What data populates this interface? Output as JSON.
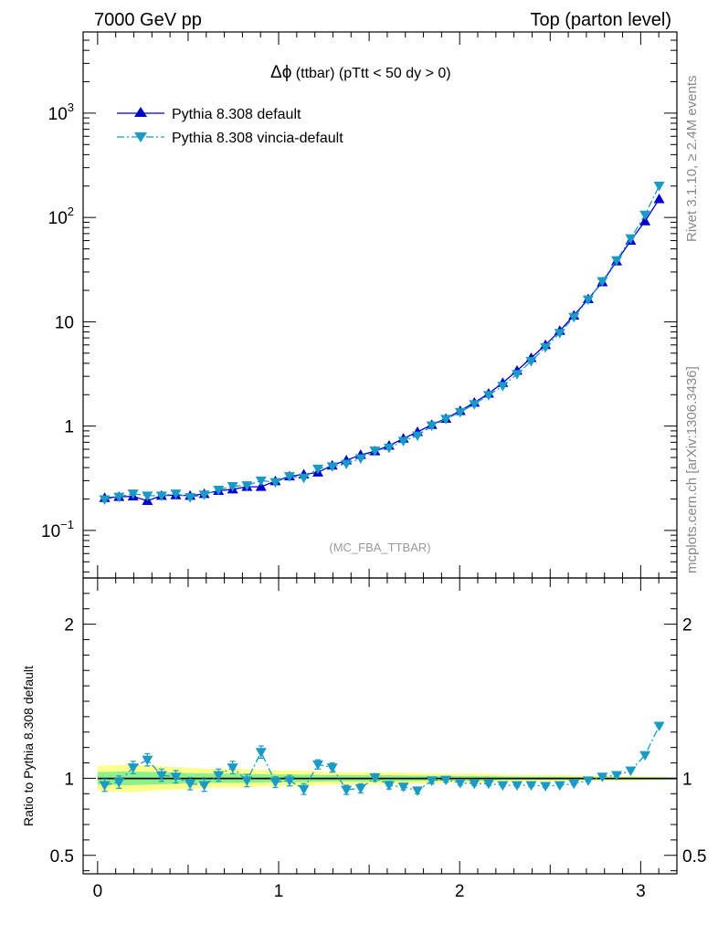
{
  "header": {
    "left": "7000 GeV pp",
    "right": "Top (parton level)"
  },
  "side_labels": {
    "rivet": "Rivet 3.1.10, ≥ 2.4M events",
    "mcplots": "mcplots.cern.ch [arXiv:1306.3436]"
  },
  "chart_data": [
    {
      "type": "line",
      "title": "Δϕ (ttbar) (pTtt < 50 dy > 0)",
      "title_symbol": "Δϕ",
      "title_rest": " (ttbar) (pTtt < 50 dy > 0)",
      "watermark": "(MC_FBA_TTBAR)",
      "yscale": "log",
      "ylim": [
        0.035,
        6000
      ],
      "xlim": [
        -0.08,
        3.2
      ],
      "y_ticks": [
        {
          "value": 0.1,
          "base": "10",
          "exp": "−1"
        },
        {
          "value": 1,
          "label": "1"
        },
        {
          "value": 10,
          "label": "10"
        },
        {
          "value": 100,
          "base": "10",
          "exp": "2"
        },
        {
          "value": 1000,
          "base": "10",
          "exp": "3"
        }
      ],
      "legend_placement": "top-left",
      "x": [
        0.039,
        0.118,
        0.196,
        0.275,
        0.353,
        0.432,
        0.511,
        0.589,
        0.668,
        0.746,
        0.825,
        0.903,
        0.982,
        1.06,
        1.139,
        1.217,
        1.296,
        1.374,
        1.453,
        1.532,
        1.61,
        1.689,
        1.767,
        1.846,
        1.924,
        2.003,
        2.081,
        2.16,
        2.238,
        2.317,
        2.395,
        2.474,
        2.553,
        2.631,
        2.71,
        2.788,
        2.867,
        2.945,
        3.024,
        3.102
      ],
      "series": [
        {
          "name": "Pythia 8.308 default",
          "color": "#0000cc",
          "marker": "triangle-up",
          "line": "solid",
          "values": [
            0.205,
            0.21,
            0.212,
            0.192,
            0.215,
            0.218,
            0.215,
            0.224,
            0.24,
            0.248,
            0.262,
            0.262,
            0.297,
            0.33,
            0.345,
            0.36,
            0.42,
            0.47,
            0.53,
            0.575,
            0.65,
            0.76,
            0.88,
            1.03,
            1.18,
            1.4,
            1.68,
            2.05,
            2.6,
            3.4,
            4.5,
            6.0,
            8.2,
            11.5,
            16.5,
            24.0,
            38.0,
            60.0,
            92.0,
            150.0
          ]
        },
        {
          "name": "Pythia 8.308 vincia-default",
          "color": "#1a9ac4",
          "marker": "triangle-down",
          "line": "dash-dot",
          "values": [
            0.198,
            0.21,
            0.225,
            0.215,
            0.215,
            0.225,
            0.208,
            0.22,
            0.245,
            0.265,
            0.27,
            0.3,
            0.29,
            0.33,
            0.32,
            0.39,
            0.41,
            0.435,
            0.49,
            0.58,
            0.62,
            0.72,
            0.81,
            1.01,
            1.17,
            1.36,
            1.62,
            1.98,
            2.42,
            3.15,
            4.2,
            5.7,
            7.8,
            11.1,
            16.3,
            24.5,
            38.8,
            63.0,
            106.0,
            201.0
          ]
        }
      ]
    },
    {
      "type": "line",
      "ylabel": "Ratio to Pythia 8.308 default",
      "ylim": [
        0.38,
        2.3
      ],
      "xlim": [
        -0.08,
        3.2
      ],
      "x_ticks": [
        0,
        1,
        2,
        3
      ],
      "y_ticks_right": [
        "0.5",
        "1",
        "2"
      ],
      "y_tick_values": [
        0.5,
        1,
        2
      ],
      "bands": [
        {
          "name": "uncertainty-outer",
          "color": "#ffff8c",
          "lo": [
            0.92,
            0.91,
            0.92,
            0.93,
            0.94,
            0.94,
            0.95,
            0.95,
            0.96,
            0.96,
            0.96,
            0.965,
            0.97,
            0.97,
            0.975,
            0.98,
            0.98,
            0.985,
            0.985,
            0.99
          ],
          "hi": [
            1.08,
            1.09,
            1.08,
            1.07,
            1.06,
            1.06,
            1.05,
            1.05,
            1.04,
            1.04,
            1.04,
            1.035,
            1.03,
            1.03,
            1.025,
            1.02,
            1.02,
            1.015,
            1.015,
            1.01
          ],
          "x": [
            0,
            0.16,
            0.32,
            0.48,
            0.64,
            0.8,
            0.96,
            1.12,
            1.28,
            1.44,
            1.6,
            1.76,
            1.92,
            2.08,
            2.24,
            2.4,
            2.56,
            2.72,
            2.88,
            3.14
          ]
        },
        {
          "name": "uncertainty-inner",
          "color": "#8cf08c",
          "lo": [
            0.96,
            0.955,
            0.96,
            0.965,
            0.97,
            0.97,
            0.975,
            0.975,
            0.98,
            0.98,
            0.98,
            0.983,
            0.985,
            0.985,
            0.988,
            0.99,
            0.99,
            0.993,
            0.993,
            0.995
          ],
          "hi": [
            1.04,
            1.045,
            1.04,
            1.035,
            1.03,
            1.03,
            1.025,
            1.025,
            1.02,
            1.02,
            1.02,
            1.017,
            1.015,
            1.015,
            1.012,
            1.01,
            1.01,
            1.007,
            1.007,
            1.005
          ],
          "x": [
            0,
            0.16,
            0.32,
            0.48,
            0.64,
            0.8,
            0.96,
            1.12,
            1.28,
            1.44,
            1.6,
            1.76,
            1.92,
            2.08,
            2.24,
            2.4,
            2.56,
            2.72,
            2.88,
            3.14
          ]
        }
      ],
      "series": [
        {
          "name": "Pythia 8.308 vincia-default",
          "color": "#1a9ac4",
          "values": [
            0.955,
            0.975,
            1.07,
            1.12,
            1.02,
            1.01,
            0.965,
            0.955,
            1.02,
            1.07,
            0.985,
            1.17,
            0.975,
            0.985,
            0.93,
            1.09,
            1.07,
            0.925,
            0.935,
            1.005,
            0.955,
            0.945,
            0.92,
            0.985,
            0.99,
            0.97,
            0.965,
            0.965,
            0.955,
            0.955,
            0.955,
            0.95,
            0.955,
            0.965,
            0.985,
            1.01,
            1.02,
            1.05,
            1.15,
            1.34
          ],
          "errors": [
            0.04,
            0.04,
            0.04,
            0.04,
            0.04,
            0.04,
            0.04,
            0.04,
            0.04,
            0.04,
            0.04,
            0.04,
            0.035,
            0.035,
            0.035,
            0.03,
            0.03,
            0.03,
            0.03,
            0.025,
            0.025,
            0.02,
            0.02,
            0.02,
            0.015,
            0.015,
            0.012,
            0.012,
            0.01,
            0.01,
            0.01,
            0.01,
            0.008,
            0.008,
            0.008,
            0.006,
            0.006,
            0.006,
            0.005,
            0.005
          ]
        }
      ]
    }
  ]
}
